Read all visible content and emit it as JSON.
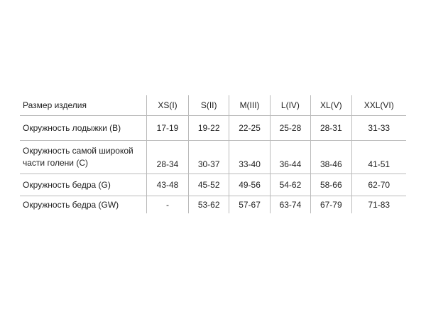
{
  "table": {
    "headers": [
      "Размер изделия",
      "XS(I)",
      "S(II)",
      "M(III)",
      "L(IV)",
      "XL(V)",
      "XXL(VI)"
    ],
    "rows": [
      {
        "label": "Окружность лодыжки (B)",
        "values": [
          "17-19",
          "19-22",
          "22-25",
          "25-28",
          "28-31",
          "31-33"
        ]
      },
      {
        "label": "Окружность самой широкой части голени (C)",
        "values": [
          "28-34",
          "30-37",
          "33-40",
          "36-44",
          "38-46",
          "41-51"
        ]
      },
      {
        "label": "Окружность бедра (G)",
        "values": [
          "43-48",
          "45-52",
          "49-56",
          "54-62",
          "58-66",
          "62-70"
        ]
      },
      {
        "label": "Окружность бедра (GW)",
        "values": [
          "-",
          "53-62",
          "57-67",
          "63-74",
          "67-79",
          "71-83"
        ]
      }
    ]
  }
}
